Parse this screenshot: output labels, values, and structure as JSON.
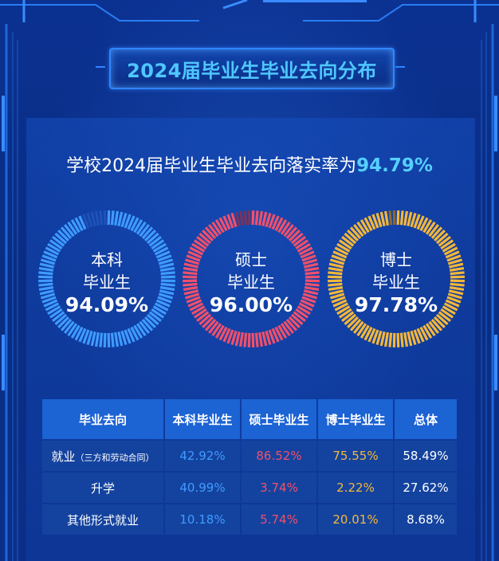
{
  "title": "2024届毕业生毕业去向分布",
  "headline": {
    "prefix": "学校2024届毕业生毕业去向落实率为",
    "value": "94.79%"
  },
  "colors": {
    "benke": "#3f9bff",
    "shuoshi": "#f0506a",
    "boshi": "#f3b73a"
  },
  "chart_data": {
    "type": "pie",
    "series": [
      {
        "name_line1": "本科",
        "name_line2": "毕业生",
        "value": 94.09,
        "label": "94.09%",
        "color": "#3f9bff"
      },
      {
        "name_line1": "硕士",
        "name_line2": "毕业生",
        "value": 96.0,
        "label": "96.00%",
        "color": "#f0506a"
      },
      {
        "name_line1": "博士",
        "name_line2": "毕业生",
        "value": 97.78,
        "label": "97.78%",
        "color": "#f3b73a"
      }
    ]
  },
  "table": {
    "headers": [
      "毕业去向",
      "本科毕业生",
      "硕士毕业生",
      "博士毕业生",
      "总体"
    ],
    "rows": [
      {
        "label": "就业",
        "label_small": "（三方和劳动合同）",
        "benke": "42.92%",
        "shuoshi": "86.52%",
        "boshi": "75.55%",
        "total": "58.49%"
      },
      {
        "label": "升学",
        "label_small": "",
        "benke": "40.99%",
        "shuoshi": "3.74%",
        "boshi": "2.22%",
        "total": "27.62%"
      },
      {
        "label": "其他形式就业",
        "label_small": "",
        "benke": "10.18%",
        "shuoshi": "5.74%",
        "boshi": "20.01%",
        "total": "8.68%"
      }
    ]
  }
}
